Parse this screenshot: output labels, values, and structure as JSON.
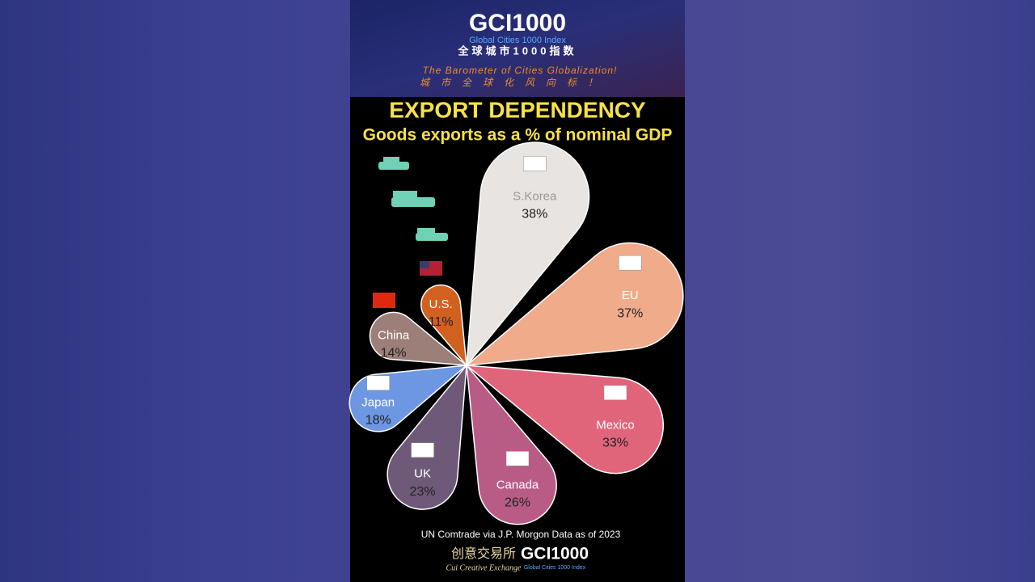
{
  "header": {
    "logo": "GCI1000",
    "logo_subtitle": "Global Cities 1000 Index",
    "logo_chinese": "全球城市1000指数",
    "slogan": "The Barometer of Cities Globalization!",
    "slogan_chinese": "城市全球化风向标！"
  },
  "chart_data": {
    "type": "petal",
    "title": "EXPORT DEPENDENCY",
    "subtitle": "Goods exports as a % of nominal GDP",
    "categories": [
      "S.Korea",
      "EU",
      "Mexico",
      "Canada",
      "UK",
      "Japan",
      "China",
      "U.S."
    ],
    "values": [
      38,
      37,
      33,
      26,
      23,
      18,
      14,
      11
    ],
    "value_labels": [
      "38%",
      "37%",
      "33%",
      "26%",
      "23%",
      "18%",
      "14%",
      "11%"
    ],
    "colors": [
      "#e8e4e1",
      "#f0ab8a",
      "#e0657a",
      "#b85c86",
      "#6e5a78",
      "#6d97e3",
      "#9c7f78",
      "#d2611f"
    ],
    "source": "UN Comtrade via J.P. Morgon Data as of 2023"
  },
  "footer": {
    "brand": "创意交易所",
    "brand_english": "Cui Creative Exchange",
    "logo": "GCI1000",
    "logo_subtitle": "Global Cities 1000 Index"
  }
}
